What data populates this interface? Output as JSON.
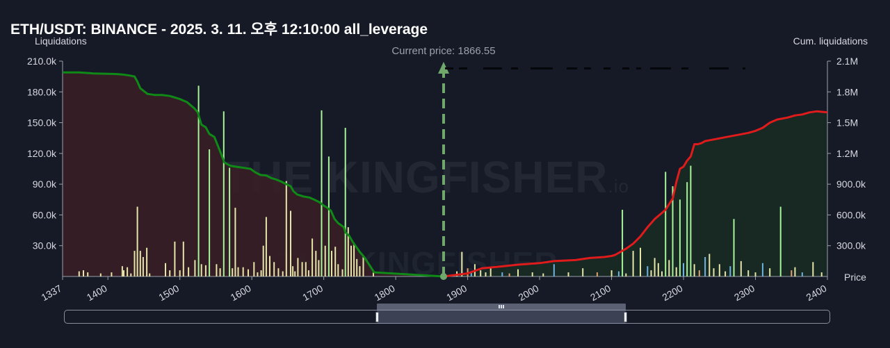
{
  "title": "ETH/USDT: BINANCE - 2025. 3. 11. 오후 12:10:00 all_leverage",
  "watermark": {
    "main": "THE KINGFISHER",
    "suffix": ".io"
  },
  "colors": {
    "background": "#161a26",
    "long_cum_line": "#0f8a17",
    "short_cum_line": "#e01b1b",
    "long_area": "#3a1e26",
    "short_area": "#182a24",
    "bar_main": "#e6e6a8",
    "bar_green": "#a8f59a",
    "bar_blue": "#6fb3e0",
    "bar_orange": "#e0a070",
    "current_price_line": "#6fa86a"
  },
  "navigator": {
    "window_start_fraction": 0.408,
    "window_end_fraction": 0.733
  },
  "chart_data": {
    "type": "bar",
    "current_price": 1866.55,
    "current_price_label": "Current price: 1866.55",
    "xlabel": "Price",
    "ylabel_left": "Liquidations",
    "ylabel_right": "Cum. liquidations",
    "xlim": [
      1337,
      2400
    ],
    "ylim_left": [
      0,
      210000
    ],
    "ylim_right": [
      0,
      2100000
    ],
    "x_ticks": [
      "1337",
      "1400",
      "1500",
      "1600",
      "1700",
      "1800",
      "1900",
      "2000",
      "2100",
      "2200",
      "2300",
      "2400"
    ],
    "x_tick_values": [
      1337,
      1400,
      1500,
      1600,
      1700,
      1800,
      1900,
      2000,
      2100,
      2200,
      2300,
      2400
    ],
    "y_ticks_left": [
      "30.0k",
      "60.0k",
      "90.0k",
      "120.0k",
      "150.0k",
      "180.0k",
      "210.0k"
    ],
    "y_tick_values_left": [
      30000,
      60000,
      90000,
      120000,
      150000,
      180000,
      210000
    ],
    "y_ticks_right": [
      "300.0k",
      "600.0k",
      "900.0k",
      "1.2M",
      "1.5M",
      "1.8M",
      "2.1M"
    ],
    "grid": false,
    "series": [
      {
        "type": "bar",
        "x": [
          1360,
          1366,
          1372,
          1390,
          1405,
          1420,
          1422,
          1427,
          1432,
          1437,
          1441,
          1445,
          1449,
          1454,
          1458,
          1480,
          1486,
          1493,
          1500,
          1505,
          1512,
          1521,
          1526,
          1530,
          1536,
          1541,
          1551,
          1556,
          1561,
          1569,
          1573,
          1577,
          1581,
          1588,
          1595,
          1603,
          1608,
          1613,
          1616,
          1620,
          1625,
          1631,
          1637,
          1643,
          1648,
          1654,
          1657,
          1660,
          1664,
          1670,
          1675,
          1679,
          1684,
          1689,
          1693,
          1697,
          1702,
          1707,
          1711,
          1716,
          1720,
          1726,
          1730,
          1734,
          1738,
          1742,
          1746,
          1750,
          1755,
          1769
        ],
        "values": [
          5000,
          6000,
          4000,
          3000,
          4000,
          10000,
          6000,
          9000,
          3000,
          25000,
          68000,
          25000,
          19000,
          28000,
          3000,
          13000,
          6000,
          34000,
          6000,
          34000,
          9000,
          16000,
          186000,
          12000,
          11000,
          124000,
          12000,
          8000,
          161000,
          106000,
          8000,
          67000,
          9000,
          9000,
          7000,
          14000,
          4000,
          6000,
          30000,
          58000,
          20000,
          14000,
          8000,
          5000,
          93000,
          64000,
          10000,
          5000,
          18000,
          14000,
          14000,
          6000,
          37000,
          25000,
          16000,
          162000,
          30000,
          117000,
          25000,
          29000,
          12000,
          7000,
          145000,
          48000,
          30000,
          33000,
          17000,
          10000,
          20000,
          4000
        ]
      },
      {
        "type": "bar",
        "x": [
          1885,
          1892,
          1900,
          1905,
          1910,
          1918,
          1925,
          1932,
          1948,
          1958,
          1970,
          1990,
          2005,
          2020,
          2040,
          2060,
          2080,
          2100,
          2110,
          2115,
          2120,
          2130,
          2140,
          2150,
          2155,
          2160,
          2165,
          2170,
          2175,
          2180,
          2185,
          2190,
          2195,
          2200,
          2205,
          2210,
          2215,
          2222,
          2230,
          2236,
          2242,
          2250,
          2258,
          2265,
          2270,
          2280,
          2290,
          2300,
          2310,
          2320,
          2335,
          2350,
          2355,
          2365,
          2380,
          2392
        ],
        "values": [
          5000,
          24000,
          8000,
          4000,
          12000,
          6000,
          4000,
          8000,
          4000,
          3000,
          7000,
          4000,
          3000,
          12000,
          4000,
          8000,
          4000,
          6000,
          5000,
          65000,
          3000,
          25000,
          28000,
          10000,
          6000,
          18000,
          13000,
          5000,
          102000,
          16000,
          88000,
          9000,
          75000,
          13000,
          92000,
          108000,
          12000,
          6000,
          19000,
          22000,
          8000,
          12000,
          5000,
          10000,
          56000,
          15000,
          6000,
          4000,
          13000,
          8000,
          68000,
          6000,
          9000,
          4000,
          14000,
          4000
        ]
      },
      {
        "type": "line",
        "name": "",
        "x": [
          1337,
          1360,
          1380,
          1410,
          1420,
          1430,
          1437,
          1441,
          1445,
          1455,
          1465,
          1475,
          1486,
          1500,
          1510,
          1515,
          1520,
          1525,
          1530,
          1536,
          1541,
          1548,
          1556,
          1562,
          1570,
          1578,
          1588,
          1598,
          1605,
          1612,
          1620,
          1627,
          1634,
          1641,
          1648,
          1654,
          1658,
          1663,
          1672,
          1680,
          1688,
          1695,
          1700,
          1705,
          1710,
          1715,
          1720,
          1728,
          1730,
          1735,
          1740,
          1745,
          1750,
          1755,
          1760,
          1770,
          1866.55
        ],
        "values": [
          1990000,
          1990000,
          1980000,
          1975000,
          1970000,
          1960000,
          1950000,
          1900000,
          1835000,
          1780000,
          1770000,
          1770000,
          1760000,
          1730000,
          1700000,
          1670000,
          1640000,
          1600000,
          1480000,
          1455000,
          1390000,
          1360000,
          1220000,
          1110000,
          1080000,
          1070000,
          1060000,
          1050000,
          1015000,
          990000,
          985000,
          960000,
          945000,
          925000,
          900000,
          880000,
          830000,
          800000,
          780000,
          770000,
          745000,
          720000,
          690000,
          670000,
          640000,
          560000,
          520000,
          480000,
          430000,
          400000,
          340000,
          290000,
          240000,
          200000,
          150000,
          40000,
          0
        ]
      },
      {
        "type": "line",
        "name": "",
        "x": [
          1866.55,
          1900,
          1920,
          1950,
          1970,
          2000,
          2020,
          2050,
          2070,
          2090,
          2100,
          2105,
          2110,
          2120,
          2130,
          2140,
          2150,
          2160,
          2170,
          2175,
          2185,
          2190,
          2195,
          2200,
          2205,
          2210,
          2215,
          2220,
          2225,
          2230,
          2245,
          2260,
          2275,
          2290,
          2300,
          2310,
          2320,
          2330,
          2345,
          2355,
          2365,
          2375,
          2385,
          2400
        ],
        "values": [
          0,
          30000,
          80000,
          100000,
          115000,
          130000,
          150000,
          160000,
          180000,
          190000,
          200000,
          210000,
          230000,
          270000,
          320000,
          390000,
          480000,
          560000,
          620000,
          650000,
          760000,
          920000,
          1050000,
          1070000,
          1130000,
          1170000,
          1290000,
          1290000,
          1300000,
          1320000,
          1340000,
          1360000,
          1380000,
          1400000,
          1420000,
          1450000,
          1500000,
          1530000,
          1550000,
          1570000,
          1580000,
          1600000,
          1610000,
          1600000
        ]
      }
    ]
  }
}
